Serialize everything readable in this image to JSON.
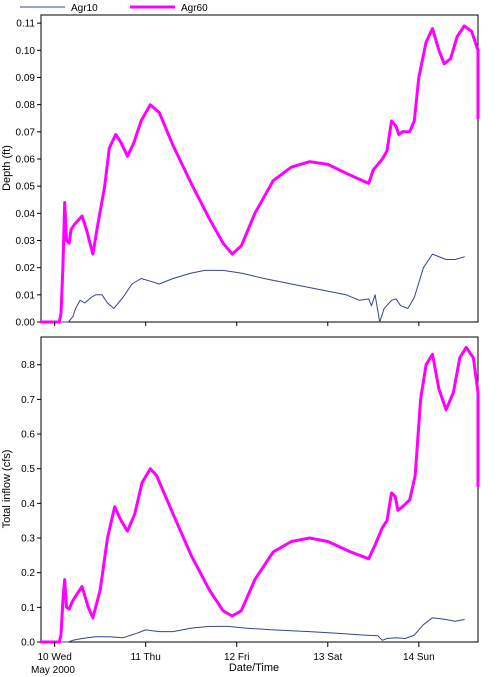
{
  "chart_data": {
    "type": "line",
    "legend": {
      "placement": "top-left",
      "entries": [
        {
          "name": "Agr10",
          "color": "#34458c",
          "width": 1
        },
        {
          "name": "Agr60",
          "color": "#ff00ff",
          "width": 3
        }
      ]
    },
    "x_axis": {
      "label": "Date/Time",
      "range": [
        9.85,
        14.65
      ],
      "ticks": [
        {
          "x": 10,
          "label": "10 Wed"
        },
        {
          "x": 11,
          "label": "11 Thu"
        },
        {
          "x": 12,
          "label": "12 Fri"
        },
        {
          "x": 13,
          "label": "13 Sat"
        },
        {
          "x": 14,
          "label": "14 Sun"
        }
      ],
      "sublabel": "May 2000"
    },
    "panels": [
      {
        "name": "depth",
        "ylabel": "Depth (ft)",
        "ylim": [
          0,
          0.113
        ],
        "yticks": [
          "0.00",
          "0.01",
          "0.02",
          "0.03",
          "0.04",
          "0.05",
          "0.06",
          "0.07",
          "0.08",
          "0.09",
          "0.10",
          "0.11"
        ],
        "ytick_values": [
          0,
          0.01,
          0.02,
          0.03,
          0.04,
          0.05,
          0.06,
          0.07,
          0.08,
          0.09,
          0.1,
          0.11
        ],
        "series": [
          {
            "name": "Agr10",
            "points": [
              [
                9.85,
                0
              ],
              [
                10.15,
                0
              ],
              [
                10.2,
                0.002
              ],
              [
                10.23,
                0.005
              ],
              [
                10.28,
                0.008
              ],
              [
                10.33,
                0.007
              ],
              [
                10.4,
                0.009
              ],
              [
                10.45,
                0.01
              ],
              [
                10.52,
                0.01
              ],
              [
                10.58,
                0.007
              ],
              [
                10.65,
                0.005
              ],
              [
                10.75,
                0.009
              ],
              [
                10.85,
                0.014
              ],
              [
                10.95,
                0.016
              ],
              [
                11.05,
                0.015
              ],
              [
                11.15,
                0.014
              ],
              [
                11.3,
                0.016
              ],
              [
                11.5,
                0.018
              ],
              [
                11.65,
                0.019
              ],
              [
                11.85,
                0.019
              ],
              [
                12.05,
                0.018
              ],
              [
                12.3,
                0.016
              ],
              [
                12.6,
                0.014
              ],
              [
                12.9,
                0.012
              ],
              [
                13.2,
                0.01
              ],
              [
                13.35,
                0.008
              ],
              [
                13.45,
                0.0085
              ],
              [
                13.48,
                0.006
              ],
              [
                13.52,
                0.01
              ],
              [
                13.57,
                0
              ],
              [
                13.62,
                0.005
              ],
              [
                13.7,
                0.008
              ],
              [
                13.75,
                0.0085
              ],
              [
                13.8,
                0.006
              ],
              [
                13.88,
                0.005
              ],
              [
                13.95,
                0.009
              ],
              [
                14.05,
                0.02
              ],
              [
                14.15,
                0.025
              ],
              [
                14.3,
                0.023
              ],
              [
                14.4,
                0.023
              ],
              [
                14.5,
                0.024
              ]
            ]
          },
          {
            "name": "Agr60",
            "points": [
              [
                9.85,
                0
              ],
              [
                10.05,
                0
              ],
              [
                10.07,
                0.003
              ],
              [
                10.09,
                0.02
              ],
              [
                10.11,
                0.044
              ],
              [
                10.13,
                0.03
              ],
              [
                10.16,
                0.029
              ],
              [
                10.18,
                0.034
              ],
              [
                10.22,
                0.036
              ],
              [
                10.3,
                0.039
              ],
              [
                10.35,
                0.034
              ],
              [
                10.42,
                0.025
              ],
              [
                10.47,
                0.035
              ],
              [
                10.55,
                0.05
              ],
              [
                10.6,
                0.064
              ],
              [
                10.67,
                0.069
              ],
              [
                10.73,
                0.066
              ],
              [
                10.8,
                0.061
              ],
              [
                10.87,
                0.066
              ],
              [
                10.95,
                0.074
              ],
              [
                11.05,
                0.08
              ],
              [
                11.15,
                0.077
              ],
              [
                11.3,
                0.065
              ],
              [
                11.5,
                0.051
              ],
              [
                11.7,
                0.038
              ],
              [
                11.85,
                0.029
              ],
              [
                11.95,
                0.025
              ],
              [
                12.05,
                0.028
              ],
              [
                12.2,
                0.04
              ],
              [
                12.4,
                0.052
              ],
              [
                12.6,
                0.057
              ],
              [
                12.8,
                0.059
              ],
              [
                13.0,
                0.058
              ],
              [
                13.25,
                0.054
              ],
              [
                13.45,
                0.051
              ],
              [
                13.5,
                0.056
              ],
              [
                13.55,
                0.058
              ],
              [
                13.6,
                0.06
              ],
              [
                13.65,
                0.063
              ],
              [
                13.7,
                0.074
              ],
              [
                13.75,
                0.072
              ],
              [
                13.78,
                0.069
              ],
              [
                13.82,
                0.07
              ],
              [
                13.9,
                0.07
              ],
              [
                13.95,
                0.074
              ],
              [
                14.0,
                0.09
              ],
              [
                14.08,
                0.103
              ],
              [
                14.15,
                0.108
              ],
              [
                14.22,
                0.1
              ],
              [
                14.28,
                0.095
              ],
              [
                14.35,
                0.097
              ],
              [
                14.42,
                0.105
              ],
              [
                14.5,
                0.109
              ],
              [
                14.58,
                0.107
              ],
              [
                14.66,
                0.1
              ],
              [
                14.75,
                0.09
              ],
              [
                14.85,
                0.081
              ],
              [
                14.93,
                0.075
              ]
            ]
          }
        ]
      },
      {
        "name": "inflow",
        "ylabel": "Total inflow (cfs)",
        "ylim": [
          0,
          0.88
        ],
        "yticks": [
          "0.0",
          "0.1",
          "0.2",
          "0.3",
          "0.4",
          "0.5",
          "0.6",
          "0.7",
          "0.8"
        ],
        "ytick_values": [
          0,
          0.1,
          0.2,
          0.3,
          0.4,
          0.5,
          0.6,
          0.7,
          0.8
        ],
        "series": [
          {
            "name": "Agr10",
            "points": [
              [
                9.85,
                0
              ],
              [
                10.15,
                0
              ],
              [
                10.2,
                0.005
              ],
              [
                10.3,
                0.01
              ],
              [
                10.45,
                0.015
              ],
              [
                10.6,
                0.015
              ],
              [
                10.75,
                0.012
              ],
              [
                10.9,
                0.025
              ],
              [
                11.0,
                0.035
              ],
              [
                11.15,
                0.03
              ],
              [
                11.3,
                0.03
              ],
              [
                11.5,
                0.04
              ],
              [
                11.7,
                0.045
              ],
              [
                11.9,
                0.045
              ],
              [
                12.1,
                0.04
              ],
              [
                12.4,
                0.035
              ],
              [
                12.8,
                0.03
              ],
              [
                13.1,
                0.025
              ],
              [
                13.4,
                0.02
              ],
              [
                13.55,
                0.018
              ],
              [
                13.6,
                0.005
              ],
              [
                13.65,
                0.01
              ],
              [
                13.75,
                0.012
              ],
              [
                13.85,
                0.01
              ],
              [
                13.95,
                0.02
              ],
              [
                14.05,
                0.05
              ],
              [
                14.15,
                0.07
              ],
              [
                14.3,
                0.065
              ],
              [
                14.4,
                0.06
              ],
              [
                14.5,
                0.065
              ]
            ]
          },
          {
            "name": "Agr60",
            "points": [
              [
                9.85,
                0
              ],
              [
                10.05,
                0
              ],
              [
                10.07,
                0.02
              ],
              [
                10.09,
                0.12
              ],
              [
                10.11,
                0.18
              ],
              [
                10.13,
                0.1
              ],
              [
                10.16,
                0.095
              ],
              [
                10.2,
                0.12
              ],
              [
                10.3,
                0.16
              ],
              [
                10.37,
                0.1
              ],
              [
                10.42,
                0.07
              ],
              [
                10.5,
                0.15
              ],
              [
                10.58,
                0.3
              ],
              [
                10.66,
                0.39
              ],
              [
                10.73,
                0.35
              ],
              [
                10.8,
                0.32
              ],
              [
                10.88,
                0.37
              ],
              [
                10.96,
                0.46
              ],
              [
                11.05,
                0.5
              ],
              [
                11.12,
                0.48
              ],
              [
                11.3,
                0.37
              ],
              [
                11.5,
                0.25
              ],
              [
                11.7,
                0.15
              ],
              [
                11.85,
                0.09
              ],
              [
                11.95,
                0.075
              ],
              [
                12.05,
                0.09
              ],
              [
                12.2,
                0.18
              ],
              [
                12.4,
                0.26
              ],
              [
                12.6,
                0.29
              ],
              [
                12.8,
                0.3
              ],
              [
                13.0,
                0.29
              ],
              [
                13.25,
                0.26
              ],
              [
                13.45,
                0.24
              ],
              [
                13.52,
                0.28
              ],
              [
                13.6,
                0.33
              ],
              [
                13.65,
                0.35
              ],
              [
                13.7,
                0.43
              ],
              [
                13.74,
                0.42
              ],
              [
                13.77,
                0.38
              ],
              [
                13.82,
                0.39
              ],
              [
                13.9,
                0.41
              ],
              [
                13.96,
                0.48
              ],
              [
                14.02,
                0.7
              ],
              [
                14.08,
                0.8
              ],
              [
                14.15,
                0.83
              ],
              [
                14.22,
                0.73
              ],
              [
                14.3,
                0.67
              ],
              [
                14.38,
                0.72
              ],
              [
                14.45,
                0.82
              ],
              [
                14.52,
                0.85
              ],
              [
                14.6,
                0.82
              ],
              [
                14.7,
                0.72
              ],
              [
                14.8,
                0.6
              ],
              [
                14.88,
                0.52
              ],
              [
                14.95,
                0.45
              ]
            ]
          }
        ]
      }
    ]
  }
}
